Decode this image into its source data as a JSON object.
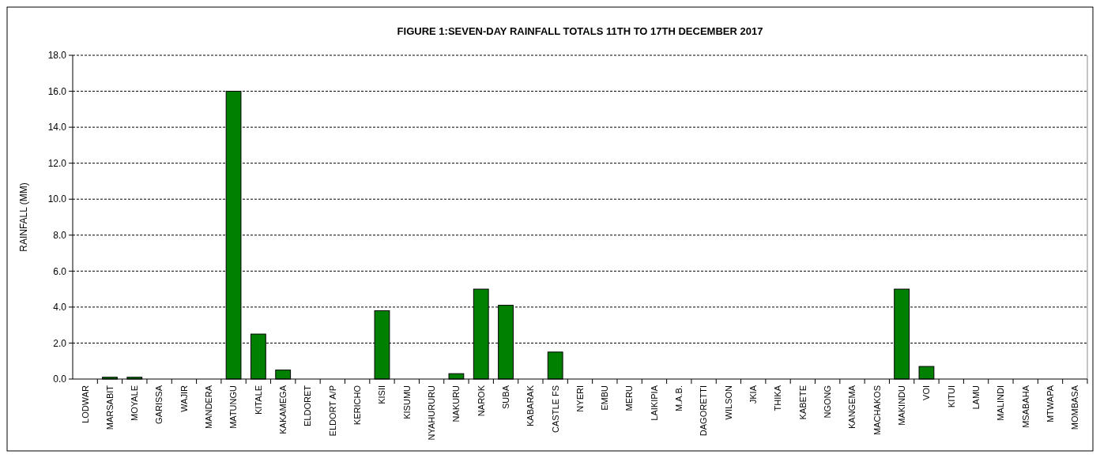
{
  "chart_data": {
    "type": "bar",
    "title": "FIGURE  1:SEVEN-DAY RAINFALL TOTALS 11TH TO 17TH DECEMBER  2017",
    "ylabel": "RAINFALL  (MM)",
    "categories": [
      "LODWAR",
      "MARSABIT",
      "MOYALE",
      "GARISSA",
      "WAJIR",
      "MANDERA",
      "MATUNGU",
      "KITALE",
      "KAKAMEGA",
      "ELDORET",
      "ELDORT A/P",
      "KERICHO",
      "KISII",
      "KISUMU",
      "NYAHURURU",
      "NAKURU",
      "NAROK",
      "SUBA",
      "KABARAK",
      "CASTLE FS",
      "NYERI",
      "EMBU",
      "MERU",
      "LAIKIPIA",
      "M.A.B.",
      "DAGORETTI",
      "WILSON",
      "JKIA",
      "THIKA",
      "KABETE",
      "NGONG",
      "KANGEMA",
      "MACHAKOS",
      "MAKINDU",
      "VOI",
      "KITUI",
      "LAMU",
      "MALINDI",
      "MSABAHA",
      "MTWAPA",
      "MOMBASA"
    ],
    "values": [
      0,
      0.1,
      0.1,
      0,
      0,
      0,
      16,
      2.5,
      0.5,
      0,
      0,
      0,
      3.8,
      0,
      0,
      0.3,
      5,
      4.1,
      0,
      1.5,
      0,
      0,
      0,
      0,
      0,
      0,
      0,
      0,
      0,
      0,
      0,
      0,
      0,
      5,
      0.7,
      0,
      0,
      0,
      0,
      0,
      0
    ],
    "color": "#008000",
    "ylim": [
      0,
      18
    ],
    "yticks": [
      {
        "value": 0,
        "label": "0.0"
      },
      {
        "value": 2,
        "label": "2.0"
      },
      {
        "value": 4,
        "label": "4.0"
      },
      {
        "value": 6,
        "label": "6.0"
      },
      {
        "value": 8,
        "label": "8.0"
      },
      {
        "value": 10,
        "label": "10.0"
      },
      {
        "value": 12,
        "label": "12.0"
      },
      {
        "value": 14,
        "label": "14.0"
      },
      {
        "value": 16,
        "label": "16.0"
      },
      {
        "value": 18,
        "label": "18.0"
      }
    ],
    "grid": "y"
  }
}
